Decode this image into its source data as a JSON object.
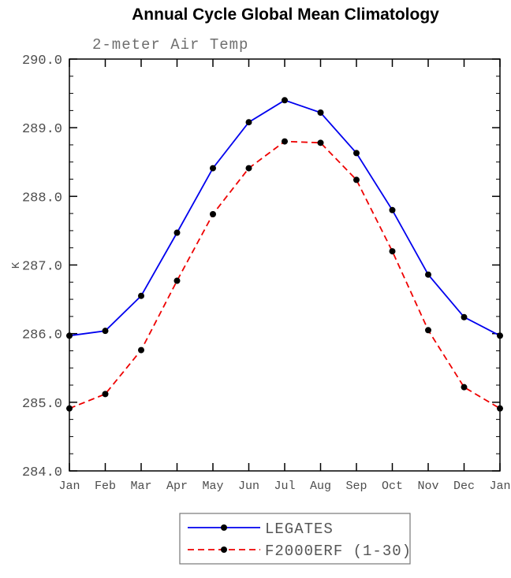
{
  "title": "Annual Cycle Global Mean Climatology",
  "chart_data": {
    "type": "line",
    "title": "Annual Cycle Global Mean Climatology",
    "subtitle": "2-meter Air Temp",
    "xlabel": "",
    "ylabel": "K",
    "ylim": [
      284.0,
      290.0
    ],
    "ytick_step": 1.0,
    "ytick_labels": [
      "284.0",
      "285.0",
      "286.0",
      "287.0",
      "288.0",
      "289.0",
      "290.0"
    ],
    "yminor_step": 0.25,
    "grid": false,
    "legend_position": "bottom-center",
    "categories": [
      "Jan",
      "Feb",
      "Mar",
      "Apr",
      "May",
      "Jun",
      "Jul",
      "Aug",
      "Sep",
      "Oct",
      "Nov",
      "Dec",
      "Jan"
    ],
    "series": [
      {
        "name": "LEGATES",
        "line_style": "solid",
        "color": "#0000ee",
        "marker": "filled-circle",
        "marker_color": "#000000",
        "values": [
          285.97,
          286.04,
          286.55,
          287.47,
          288.41,
          289.08,
          289.4,
          289.22,
          288.63,
          287.8,
          286.86,
          286.24,
          285.97
        ]
      },
      {
        "name": "F2000ERF (1-30)",
        "line_style": "dashed",
        "color": "#ee0000",
        "marker": "filled-circle",
        "marker_color": "#000000",
        "values": [
          284.91,
          285.12,
          285.76,
          286.77,
          287.74,
          288.41,
          288.8,
          288.78,
          288.24,
          287.2,
          286.05,
          285.22,
          284.91
        ]
      }
    ]
  },
  "legend": {
    "entries": [
      "LEGATES",
      "F2000ERF (1-30)"
    ],
    "border_color": "#777777"
  },
  "frame": {
    "axis_color": "#000000",
    "background": "#ffffff"
  }
}
